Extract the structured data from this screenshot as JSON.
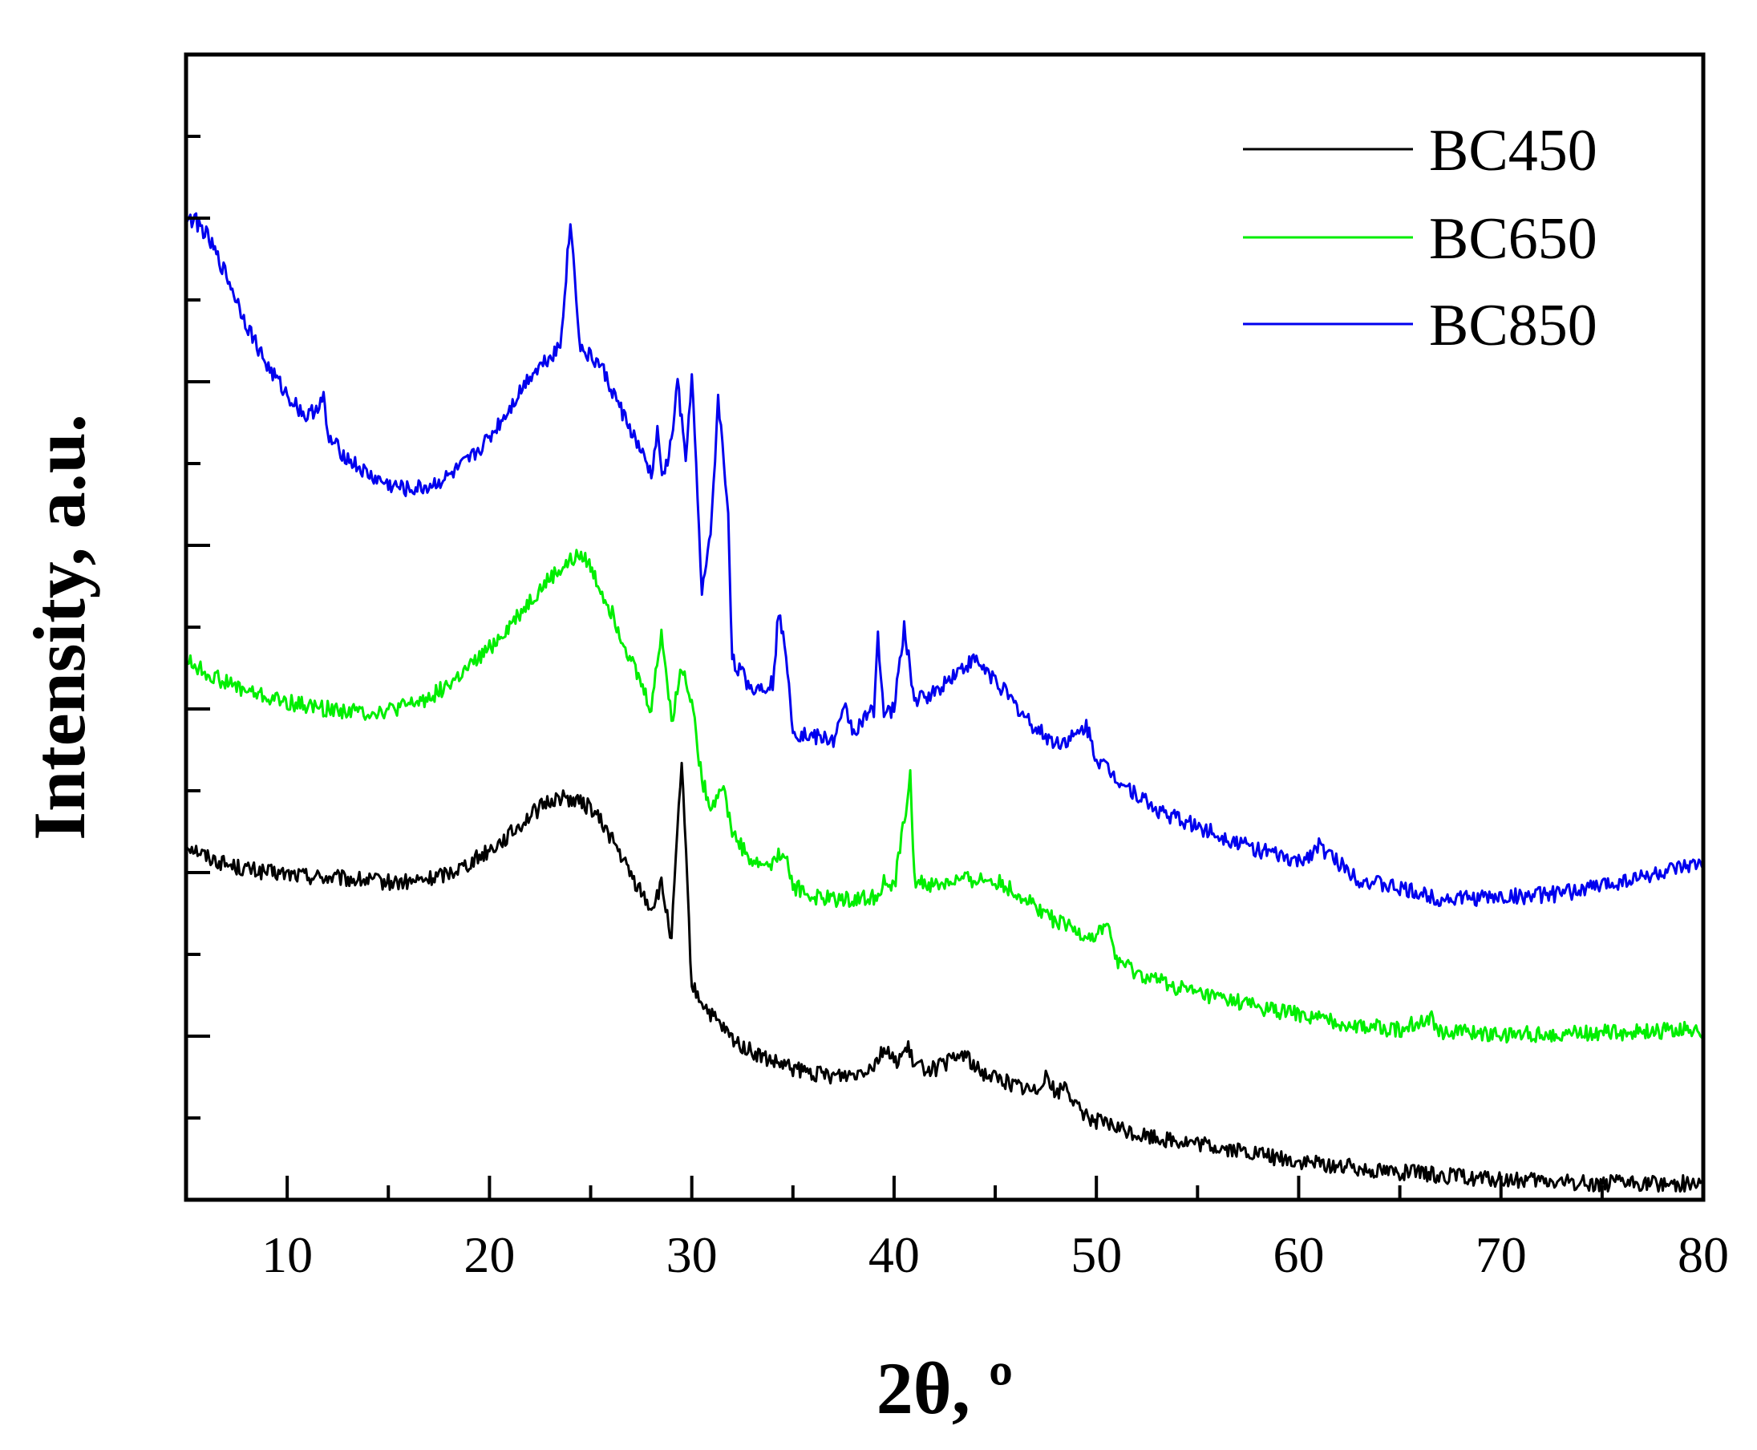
{
  "chart_data": {
    "type": "line",
    "title": "",
    "xlabel": "2θ, º",
    "ylabel": "Intensity, a.u.",
    "xlim": [
      5,
      80
    ],
    "ylim": [
      0,
      700
    ],
    "y_tick_labels_shown": false,
    "x_ticks": [
      10,
      20,
      30,
      40,
      50,
      60,
      70,
      80
    ],
    "x_tick_labels": [
      "10",
      "20",
      "30",
      "40",
      "50",
      "60",
      "70",
      "80"
    ],
    "grid": false,
    "legend_position": "top-right",
    "series": [
      {
        "name": "BC450",
        "color": "#000000",
        "x": [
          5,
          6,
          7,
          8,
          9,
          10,
          11,
          12,
          13,
          14,
          15,
          16,
          17,
          18,
          19,
          20,
          21,
          22,
          23,
          23.5,
          24,
          25,
          26,
          27,
          28,
          28.5,
          29,
          29.5,
          30,
          31,
          32,
          33,
          34,
          35,
          36,
          37,
          38,
          39,
          39.5,
          40,
          40.7,
          41,
          42,
          43,
          43.5,
          44,
          45,
          46,
          47,
          47.5,
          48,
          48.5,
          49,
          50,
          52,
          55,
          58,
          60,
          65,
          70,
          75,
          80
        ],
        "y": [
          218,
          210,
          205,
          202,
          200,
          199,
          198,
          197,
          196,
          195,
          194,
          194,
          196,
          200,
          206,
          214,
          223,
          235,
          244,
          246,
          245,
          240,
          222,
          198,
          178,
          192,
          160,
          268,
          130,
          112,
          98,
          90,
          84,
          80,
          77,
          76,
          77,
          83,
          93,
          84,
          92,
          82,
          80,
          86,
          90,
          80,
          75,
          70,
          66,
          78,
          64,
          71,
          56,
          48,
          40,
          34,
          28,
          23,
          17,
          12,
          10,
          10
        ]
      },
      {
        "name": "BC650",
        "color": "#00ee00",
        "x": [
          5,
          6,
          7,
          8,
          9,
          10,
          11,
          12,
          13,
          14,
          15,
          16,
          17,
          18,
          19,
          20,
          21,
          22,
          23,
          24,
          24.6,
          25,
          26,
          27,
          28,
          28.5,
          29,
          29.5,
          30,
          30.5,
          31,
          31.5,
          32,
          33,
          34,
          34.5,
          35,
          36,
          37,
          38,
          39,
          39.5,
          40,
          40.8,
          41,
          42,
          43,
          44,
          45,
          46,
          47,
          48,
          49,
          50,
          50.5,
          51,
          52,
          55,
          58,
          60,
          63,
          65,
          66.5,
          67,
          70,
          75,
          80
        ],
        "y": [
          330,
          322,
          316,
          311,
          307,
          304,
          302,
          300,
          299,
          298,
          299,
          302,
          307,
          315,
          325,
          337,
          351,
          366,
          380,
          390,
          395,
          386,
          360,
          330,
          300,
          348,
          292,
          326,
          306,
          256,
          240,
          255,
          225,
          206,
          205,
          215,
          192,
          185,
          184,
          184,
          185,
          194,
          190,
          258,
          195,
          192,
          195,
          196,
          195,
          188,
          180,
          170,
          164,
          160,
          170,
          147,
          138,
          126,
          118,
          113,
          106,
          104,
          112,
          103,
          101,
          102,
          104
        ]
      },
      {
        "name": "BC850",
        "color": "#0000ee",
        "x": [
          5,
          5.5,
          6,
          7,
          8,
          9,
          10,
          11,
          11.8,
          12,
          13,
          14,
          15,
          16,
          17,
          18,
          19,
          20,
          21,
          22,
          23,
          23.5,
          24,
          24.5,
          25,
          25.5,
          26,
          27,
          28,
          28.3,
          28.6,
          29,
          29.3,
          29.7,
          30,
          30.5,
          31,
          31.3,
          31.8,
          32,
          33,
          34,
          34.3,
          34.8,
          35,
          36,
          37,
          37.6,
          38,
          39,
          39.2,
          39.5,
          40,
          40.5,
          41,
          42,
          43,
          44,
          45,
          46,
          47,
          48,
          49,
          49.5,
          50,
          51,
          52,
          53,
          55,
          58,
          60,
          61,
          63,
          65,
          67,
          70,
          73,
          76,
          80
        ],
        "y": [
          600,
          598,
          590,
          565,
          535,
          510,
          492,
          478,
          490,
          466,
          453,
          443,
          437,
          434,
          436,
          442,
          452,
          466,
          484,
          504,
          516,
          522,
          598,
          520,
          515,
          510,
          496,
          470,
          443,
          468,
          440,
          464,
          500,
          450,
          506,
          368,
          418,
          490,
          420,
          330,
          312,
          316,
          360,
          320,
          286,
          283,
          281,
          300,
          286,
          300,
          347,
          296,
          300,
          350,
          305,
          310,
          322,
          330,
          318,
          302,
          288,
          279,
          283,
          290,
          270,
          258,
          248,
          238,
          228,
          214,
          206,
          216,
          196,
          190,
          184,
          185,
          187,
          195,
          205
        ]
      }
    ]
  }
}
